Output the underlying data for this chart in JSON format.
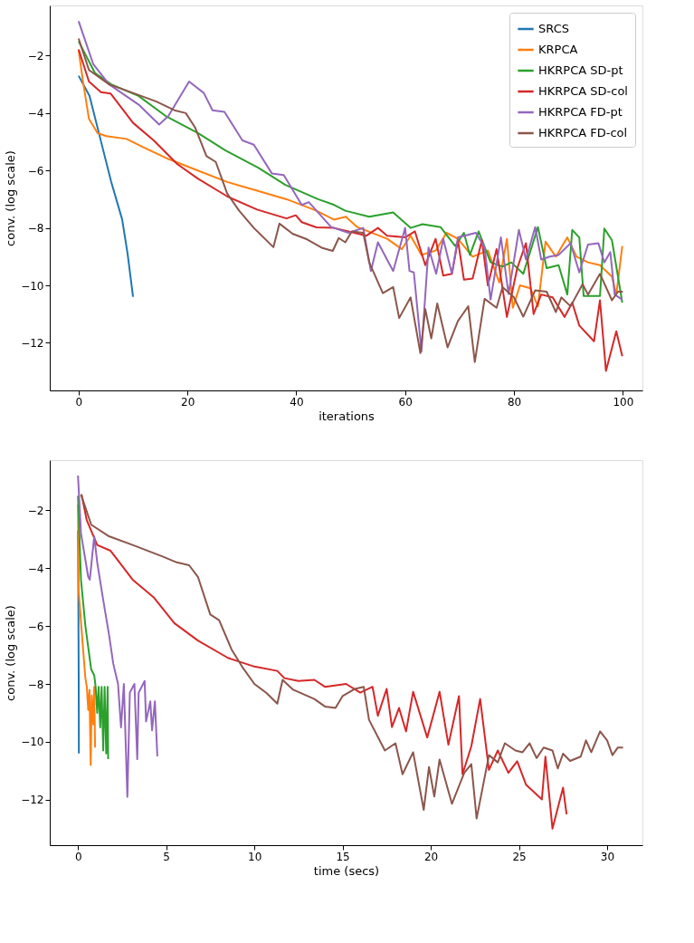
{
  "chart_data": [
    {
      "type": "line",
      "xlabel": "iterations",
      "ylabel": "conv. (log scale)",
      "xlim": [
        -5.3,
        103.6
      ],
      "xticks": [
        0,
        20,
        40,
        60,
        80,
        100
      ],
      "ylim": [
        -13.66,
        -0.25
      ],
      "yticks": [
        -12,
        -10,
        -8,
        -6,
        -4,
        -2
      ],
      "legend": "top right",
      "grid": false,
      "series": [
        {
          "name": "SRCS",
          "color": "#1f77b4",
          "x": [
            0,
            2,
            4,
            6,
            8,
            9,
            10
          ],
          "values": [
            -2.7,
            -3.4,
            -4.9,
            -6.4,
            -7.7,
            -8.9,
            -10.4
          ]
        },
        {
          "name": "KRPCA",
          "color": "#ff7f0e",
          "x": [
            0,
            0.8,
            1.9,
            3.5,
            5.1,
            8.8,
            12,
            16.5,
            21.9,
            27.3,
            32.8,
            38.2,
            43.7,
            46.9,
            49.1,
            51.2,
            56.7,
            59.4,
            61,
            63,
            65.6,
            67.6,
            69.7,
            72.4,
            75.2,
            77.3,
            78.7,
            79.8,
            81.1,
            83,
            84.4,
            85.8,
            87.7,
            89.8,
            91.5,
            93.6,
            95.8,
            98,
            98.8,
            99.9
          ],
          "values": [
            -1.8,
            -2.9,
            -4.2,
            -4.7,
            -4.8,
            -4.9,
            -5.2,
            -5.6,
            -6.0,
            -6.4,
            -6.7,
            -7.0,
            -7.4,
            -7.71,
            -7.61,
            -7.97,
            -8.38,
            -8.74,
            -8.27,
            -8.94,
            -8.79,
            -8.17,
            -8.38,
            -9.0,
            -8.79,
            -9.9,
            -8.38,
            -10.78,
            -10.0,
            -10.1,
            -10.73,
            -8.48,
            -9.0,
            -8.33,
            -9.0,
            -9.2,
            -9.3,
            -9.7,
            -10.32,
            -8.63
          ]
        },
        {
          "name": "HKRPCA SD-pt",
          "color": "#2ca02c",
          "x": [
            0,
            3,
            6,
            11,
            16,
            22,
            27,
            33,
            38,
            44,
            47,
            49,
            53.4,
            57.8,
            61,
            63.2,
            66.5,
            69.2,
            70.8,
            71.9,
            73.5,
            75.7,
            77.9,
            79.5,
            81.7,
            84.4,
            86,
            88.2,
            89.8,
            90.7,
            92,
            92.8,
            95.8,
            96.6,
            98,
            99.9
          ],
          "values": [
            -1.5,
            -2.6,
            -3.0,
            -3.4,
            -4.1,
            -4.7,
            -5.3,
            -5.9,
            -6.5,
            -7.0,
            -7.2,
            -7.4,
            -7.61,
            -7.46,
            -8.0,
            -7.87,
            -7.97,
            -8.63,
            -8.17,
            -8.94,
            -8.12,
            -9.2,
            -9.35,
            -9.2,
            -9.6,
            -7.97,
            -9.4,
            -9.3,
            -10.32,
            -8.07,
            -8.33,
            -10.37,
            -10.37,
            -8.02,
            -8.43,
            -10.6
          ]
        },
        {
          "name": "HKRPCA SD-col",
          "color": "#d62728",
          "x": [
            0,
            1.9,
            4.1,
            5.9,
            10,
            13.8,
            18.1,
            21.9,
            27.3,
            32.8,
            38.2,
            39.9,
            41,
            43.7,
            46.9,
            49.6,
            52.9,
            55,
            56.7,
            60,
            61.8,
            63.7,
            65.6,
            67,
            68.6,
            69.7,
            70.8,
            72.4,
            74.1,
            75.2,
            76.8,
            78.7,
            80.6,
            82.2,
            83.6,
            85,
            87.1,
            89.3,
            90.7,
            92,
            94.7,
            95.8,
            96.9,
            98.8,
            99.9
          ],
          "values": [
            -1.78,
            -2.9,
            -3.27,
            -3.32,
            -4.34,
            -4.95,
            -5.77,
            -6.28,
            -6.9,
            -7.36,
            -7.67,
            -7.56,
            -7.8,
            -7.98,
            -8.0,
            -8.12,
            -8.27,
            -8.0,
            -8.27,
            -8.33,
            -8.12,
            -9.3,
            -8.38,
            -9.66,
            -9.6,
            -8.43,
            -9.8,
            -9.76,
            -8.43,
            -10.0,
            -8.74,
            -11.1,
            -9.4,
            -8.53,
            -11.0,
            -10.32,
            -10.42,
            -11.1,
            -10.6,
            -11.4,
            -11.95,
            -10.52,
            -12.98,
            -11.6,
            -12.47
          ]
        },
        {
          "name": "HKRPCA FD-pt",
          "color": "#9467bd",
          "x": [
            0,
            2.7,
            5.6,
            11,
            14.8,
            16.5,
            20.3,
            23,
            24.6,
            26.8,
            30.1,
            32.2,
            35.5,
            37.7,
            41,
            42.3,
            46.4,
            49.6,
            52.3,
            53.7,
            55,
            57.8,
            60,
            60.8,
            61.6,
            63,
            64.3,
            65.7,
            67,
            68.6,
            69.7,
            73,
            74.6,
            75.7,
            77.6,
            79,
            80.9,
            82.2,
            83.9,
            85,
            86.6,
            88.2,
            90.4,
            92,
            93.6,
            95.5,
            96.6,
            97.7,
            98.5,
            99.9
          ],
          "values": [
            -0.8,
            -2.3,
            -3.0,
            -3.7,
            -4.4,
            -4.1,
            -2.9,
            -3.3,
            -3.9,
            -3.96,
            -4.95,
            -5.1,
            -6.1,
            -6.16,
            -7.2,
            -7.1,
            -7.97,
            -8.17,
            -8.0,
            -9.5,
            -8.5,
            -9.5,
            -8.0,
            -9.5,
            -9.55,
            -12.3,
            -8.68,
            -9.6,
            -8.38,
            -9.6,
            -8.33,
            -8.17,
            -8.68,
            -10.5,
            -8.33,
            -10.3,
            -8.07,
            -9.1,
            -7.97,
            -9.1,
            -9.0,
            -8.94,
            -8.53,
            -9.55,
            -8.58,
            -8.53,
            -9.2,
            -8.84,
            -10.32,
            -10.5
          ]
        },
        {
          "name": "HKRPCA FD-col",
          "color": "#8c564b",
          "x": [
            0,
            1.9,
            5.6,
            10,
            14.3,
            17.6,
            19.7,
            21.4,
            23.5,
            25.2,
            27.3,
            29.5,
            32.2,
            35.8,
            36.9,
            39.3,
            42,
            44.8,
            46.7,
            47.8,
            49,
            50.2,
            52.3,
            53.4,
            55.9,
            57.8,
            58.9,
            61,
            62.8,
            63.7,
            64.8,
            65.9,
            67.8,
            69.7,
            71.6,
            72.8,
            74.6,
            76.8,
            77.9,
            80,
            81.7,
            83.9,
            86,
            87.7,
            88.7,
            90.4,
            92.6,
            93.6,
            95.8,
            98,
            99.1,
            100
          ],
          "values": [
            -1.4,
            -2.5,
            -3.0,
            -3.3,
            -3.6,
            -3.9,
            -4.0,
            -4.5,
            -5.5,
            -5.7,
            -6.8,
            -7.4,
            -8.0,
            -8.67,
            -7.85,
            -8.2,
            -8.4,
            -8.7,
            -8.8,
            -8.35,
            -8.5,
            -8.12,
            -8.17,
            -9.2,
            -10.27,
            -10.06,
            -11.14,
            -10.42,
            -12.36,
            -10.83,
            -11.85,
            -10.63,
            -12.16,
            -11.24,
            -10.73,
            -12.67,
            -10.47,
            -10.78,
            -10.06,
            -10.42,
            -11.09,
            -10.17,
            -10.22,
            -10.93,
            -10.42,
            -10.73,
            -9.96,
            -10.32,
            -9.6,
            -10.52,
            -10.22,
            -10.22
          ]
        }
      ]
    },
    {
      "type": "line",
      "xlabel": "time (secs)",
      "ylabel": "conv. (log scale)",
      "xlim": [
        -1.6,
        32.0
      ],
      "xticks": [
        0,
        5,
        10,
        15,
        20,
        25,
        30
      ],
      "ylim": [
        -13.57,
        -0.27
      ],
      "yticks": [
        -12,
        -10,
        -8,
        -6,
        -4,
        -2
      ],
      "legend": "top right",
      "grid": false,
      "series": [
        {
          "name": "SRCS",
          "color": "#1f77b4",
          "x": [
            0,
            0.01,
            0.02,
            0.03,
            0.04,
            0.045,
            0.05
          ],
          "values": [
            -2.7,
            -3.4,
            -4.9,
            -6.4,
            -7.7,
            -8.9,
            -10.4
          ]
        },
        {
          "name": "KRPCA",
          "color": "#ff7f0e",
          "x": [
            0,
            0.04,
            0.25,
            0.42,
            0.5,
            0.58,
            0.65,
            0.72,
            0.78,
            0.87,
            0.92,
            0.97
          ],
          "values": [
            -1.8,
            -4.8,
            -6.5,
            -7.8,
            -8.1,
            -8.9,
            -8.2,
            -10.8,
            -8.4,
            -9.4,
            -8.1,
            -10.2
          ]
        },
        {
          "name": "HKRPCA SD-pt",
          "color": "#2ca02c",
          "x": [
            0,
            0.17,
            0.42,
            0.75,
            0.92,
            1.0,
            1.09,
            1.17,
            1.26,
            1.34,
            1.43,
            1.51,
            1.6,
            1.68,
            1.71
          ],
          "values": [
            -1.5,
            -4.4,
            -6.0,
            -7.5,
            -7.7,
            -8.1,
            -9.0,
            -8.1,
            -9.5,
            -8.1,
            -10.3,
            -8.1,
            -10.4,
            -8.1,
            -10.6
          ]
        },
        {
          "name": "HKRPCA SD-col",
          "color": "#d62728",
          "x": [
            0.2,
            0.5,
            1.09,
            1.85,
            3.1,
            4.28,
            5.46,
            6.8,
            8.5,
            10.0,
            11.3,
            11.7,
            12.5,
            13.4,
            14,
            15.2,
            16,
            16.7,
            17,
            17.5,
            17.8,
            18.2,
            18.6,
            19,
            19.8,
            20.5,
            21,
            21.6,
            21.8,
            22.3,
            22.8,
            23.3,
            23.8,
            24.4,
            24.9,
            25.4,
            26.3,
            26.5,
            26.9,
            27.5,
            27.7
          ],
          "values": [
            -1.45,
            -2.35,
            -3.2,
            -3.4,
            -4.4,
            -5.0,
            -5.9,
            -6.5,
            -7.1,
            -7.4,
            -7.55,
            -7.8,
            -7.9,
            -7.86,
            -8.1,
            -8.0,
            -8.3,
            -8.1,
            -9.1,
            -8.17,
            -9.49,
            -8.83,
            -9.64,
            -8.27,
            -9.85,
            -8.27,
            -10.1,
            -8.42,
            -11.12,
            -10.15,
            -8.52,
            -10.97,
            -10.3,
            -11.07,
            -10.67,
            -11.48,
            -11.99,
            -10.51,
            -13.0,
            -11.58,
            -12.5
          ]
        },
        {
          "name": "HKRPCA FD-pt",
          "color": "#9467bd",
          "x": [
            0,
            0.17,
            0.58,
            0.67,
            0.92,
            1.09,
            1.43,
            1.76,
            2.0,
            2.27,
            2.44,
            2.6,
            2.8,
            2.94,
            3.2,
            3.36,
            3.44,
            3.78,
            3.86,
            4.1,
            4.2,
            4.36,
            4.5
          ],
          "values": [
            -0.8,
            -2.8,
            -4.3,
            -4.4,
            -2.9,
            -3.8,
            -5.1,
            -6.3,
            -7.3,
            -8.0,
            -9.5,
            -8.0,
            -11.9,
            -8.3,
            -8.0,
            -10.6,
            -8.3,
            -7.9,
            -9.3,
            -8.6,
            -9.6,
            -8.6,
            -10.5
          ]
        },
        {
          "name": "HKRPCA FD-col",
          "color": "#8c564b",
          "x": [
            0.17,
            0.75,
            1.76,
            3.1,
            4.8,
            5.6,
            6.3,
            6.8,
            7.5,
            8.0,
            8.7,
            9.3,
            10.0,
            10.7,
            11.3,
            11.6,
            12.2,
            13.4,
            14,
            14.6,
            15,
            15.7,
            16.2,
            16.5,
            17.4,
            18,
            18.4,
            19,
            19.6,
            19.9,
            20.2,
            20.5,
            21.2,
            21.9,
            22.3,
            22.6,
            23.3,
            23.8,
            24.2,
            24.8,
            25.2,
            25.6,
            26,
            26.4,
            26.9,
            27.2,
            27.5,
            27.9,
            28.5,
            28.8,
            29.1,
            29.6,
            30,
            30.3,
            30.6,
            30.9
          ],
          "values": [
            -1.45,
            -2.5,
            -2.9,
            -3.2,
            -3.6,
            -3.8,
            -3.9,
            -4.3,
            -5.6,
            -5.8,
            -6.8,
            -7.4,
            -8.0,
            -8.32,
            -8.68,
            -7.86,
            -8.2,
            -8.52,
            -8.78,
            -8.83,
            -8.42,
            -8.17,
            -8.1,
            -9.24,
            -10.3,
            -10.05,
            -11.12,
            -10.36,
            -12.35,
            -10.87,
            -11.89,
            -10.61,
            -12.14,
            -11.07,
            -10.77,
            -12.65,
            -10.46,
            -10.71,
            -10.05,
            -10.3,
            -10.36,
            -10.05,
            -10.56,
            -10.2,
            -10.3,
            -10.92,
            -10.41,
            -10.66,
            -10.51,
            -9.95,
            -10.36,
            -9.64,
            -9.95,
            -10.46,
            -10.2,
            -10.2
          ]
        }
      ]
    }
  ]
}
